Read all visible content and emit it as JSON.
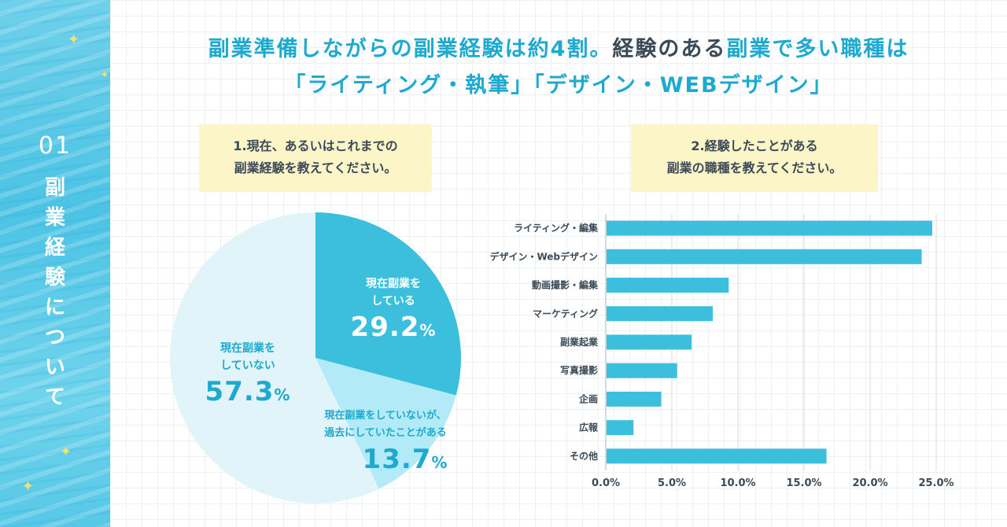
{
  "sidebar": {
    "number": "01",
    "title_chars": [
      "副",
      "業",
      "経",
      "験",
      "に",
      "つ",
      "い",
      "て"
    ]
  },
  "headline": {
    "line1_a": "副業準備しながらの副業経験は約4割。",
    "line1_b": "経験のある",
    "line1_c": "副業で多い職種は",
    "line2": "「ライティング・執筆」「デザイン・WEBデザイン」"
  },
  "question1": {
    "line1": "1.現在、あるいはこれまでの",
    "line2": "副業経験を教えてください。"
  },
  "question2": {
    "line1": "2.経験したことがある",
    "line2": "副業の職種を教えてください。"
  },
  "colors": {
    "accent": "#1ea9cf",
    "bar": "#3bbfdd",
    "pie_doing": "#3bbfdd",
    "pie_past": "#b2ebf7",
    "pie_not": "#e0f4fa",
    "text_dark": "#3b4a57"
  },
  "chart_data": [
    {
      "type": "pie",
      "title": "1.現在、あるいはこれまでの副業経験を教えてください。",
      "slices": [
        {
          "label_l1": "現在副業を",
          "label_l2": "している",
          "value": 29.2,
          "value_text": "29.2",
          "unit": "%",
          "color": "#3bbfdd"
        },
        {
          "label_l1": "現在副業をしていないが、",
          "label_l2": "過去にしていたことがある",
          "value": 13.7,
          "value_text": "13.7",
          "unit": "%",
          "color": "#b2ebf7"
        },
        {
          "label_l1": "現在副業を",
          "label_l2": "していない",
          "value": 57.3,
          "value_text": "57.3",
          "unit": "%",
          "color": "#e0f4fa"
        }
      ]
    },
    {
      "type": "bar",
      "orientation": "horizontal",
      "title": "2.経験したことがある副業の職種を教えてください。",
      "categories": [
        "ライティング・編集",
        "デザイン・Webデザイン",
        "動画撮影・編集",
        "マーケティング",
        "副業起業",
        "写真撮影",
        "企画",
        "広報",
        "その他"
      ],
      "values": [
        24.7,
        23.9,
        9.3,
        8.1,
        6.5,
        5.4,
        4.2,
        2.1,
        16.7
      ],
      "xlim": [
        0,
        25
      ],
      "ticks": [
        0,
        5,
        10,
        15,
        20,
        25
      ],
      "tick_labels": [
        "0.0%",
        "5.0%",
        "10.0%",
        "15.0%",
        "20.0%",
        "25.0%"
      ]
    }
  ]
}
